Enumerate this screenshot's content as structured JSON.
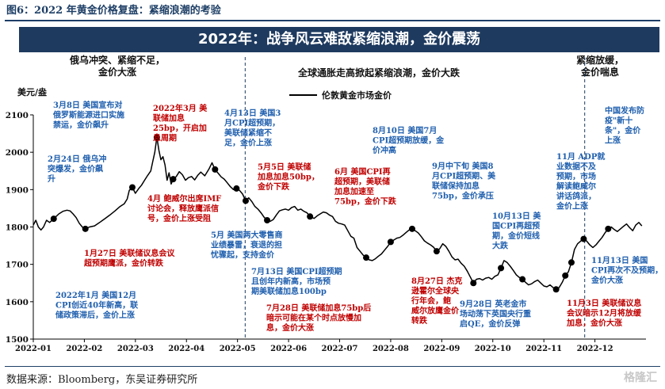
{
  "figure_title": "图6：2022 年黄金价格复盘：紧缩浪潮的考验",
  "banner_title": "2022年：战争风云难敌紧缩浪潮，金价震荡",
  "source": "数据来源：Bloomberg，东吴证券研究所",
  "watermark": "格隆汇",
  "colors": {
    "line": "#000000",
    "navy": "#1e3a5f",
    "blue_text": "#1f5fae",
    "red_text": "#c00000",
    "dashed": "#1e3a5f"
  },
  "phases": [
    {
      "lines": [
        "俄乌冲突、紧缩不足，",
        "金价大涨"
      ]
    },
    {
      "lines": [
        "全球通胀走高掀起紧缩浪潮，金价大跌"
      ]
    },
    {
      "lines": [
        "紧缩放缓，",
        "金价喘息"
      ]
    }
  ],
  "chart_data": {
    "type": "line",
    "ylabel": "美元/盎",
    "ylim": [
      1500,
      2100
    ],
    "yticks": [
      1500,
      1600,
      1700,
      1800,
      1900,
      2000,
      2100
    ],
    "x_tick_labels": [
      "2022-01",
      "2022-02",
      "2022-03",
      "2022-04",
      "2022-05",
      "2022-06",
      "2022-07",
      "2022-08",
      "2022-09",
      "2022-10",
      "2022-11",
      "2022-12"
    ],
    "xlim": [
      0,
      12
    ],
    "series": [
      {
        "name": "伦敦黄金市场金价",
        "color": "#000000",
        "points": [
          [
            0.0,
            1805
          ],
          [
            0.05,
            1818
          ],
          [
            0.1,
            1800
          ],
          [
            0.15,
            1792
          ],
          [
            0.2,
            1800
          ],
          [
            0.26,
            1818
          ],
          [
            0.32,
            1812
          ],
          [
            0.4,
            1822
          ],
          [
            0.5,
            1835
          ],
          [
            0.58,
            1842
          ],
          [
            0.66,
            1845
          ],
          [
            0.72,
            1843
          ],
          [
            0.78,
            1835
          ],
          [
            0.84,
            1825
          ],
          [
            0.9,
            1810
          ],
          [
            0.96,
            1800
          ],
          [
            1.02,
            1795
          ],
          [
            1.1,
            1800
          ],
          [
            1.2,
            1803
          ],
          [
            1.3,
            1812
          ],
          [
            1.4,
            1822
          ],
          [
            1.5,
            1832
          ],
          [
            1.6,
            1843
          ],
          [
            1.7,
            1855
          ],
          [
            1.78,
            1862
          ],
          [
            1.84,
            1875
          ],
          [
            1.88,
            1898
          ],
          [
            1.94,
            1906
          ],
          [
            2.0,
            1890
          ],
          [
            2.06,
            1902
          ],
          [
            2.12,
            1912
          ],
          [
            2.18,
            1925
          ],
          [
            2.24,
            1938
          ],
          [
            2.3,
            1950
          ],
          [
            2.34,
            1975
          ],
          [
            2.38,
            2000
          ],
          [
            2.42,
            2040
          ],
          [
            2.46,
            2005
          ],
          [
            2.5,
            1980
          ],
          [
            2.54,
            1988
          ],
          [
            2.58,
            1966
          ],
          [
            2.62,
            1925
          ],
          [
            2.66,
            1945
          ],
          [
            2.7,
            1915
          ],
          [
            2.74,
            1928
          ],
          [
            2.8,
            1935
          ],
          [
            2.86,
            1948
          ],
          [
            2.92,
            1940
          ],
          [
            2.98,
            1925
          ],
          [
            3.04,
            1932
          ],
          [
            3.1,
            1935
          ],
          [
            3.16,
            1926
          ],
          [
            3.22,
            1938
          ],
          [
            3.28,
            1947
          ],
          [
            3.36,
            1937
          ],
          [
            3.44,
            1955
          ],
          [
            3.5,
            1972
          ],
          [
            3.56,
            1954
          ],
          [
            3.62,
            1944
          ],
          [
            3.68,
            1934
          ],
          [
            3.74,
            1928
          ],
          [
            3.8,
            1918
          ],
          [
            3.86,
            1908
          ],
          [
            3.92,
            1900
          ],
          [
            3.98,
            1903
          ],
          [
            4.04,
            1898
          ],
          [
            4.1,
            1888
          ],
          [
            4.16,
            1870
          ],
          [
            4.22,
            1878
          ],
          [
            4.28,
            1868
          ],
          [
            4.34,
            1855
          ],
          [
            4.4,
            1848
          ],
          [
            4.46,
            1838
          ],
          [
            4.52,
            1826
          ],
          [
            4.58,
            1818
          ],
          [
            4.64,
            1815
          ],
          [
            4.7,
            1820
          ],
          [
            4.76,
            1832
          ],
          [
            4.82,
            1843
          ],
          [
            4.88,
            1846
          ],
          [
            4.94,
            1848
          ],
          [
            5.0,
            1845
          ],
          [
            5.06,
            1852
          ],
          [
            5.12,
            1855
          ],
          [
            5.18,
            1845
          ],
          [
            5.24,
            1848
          ],
          [
            5.3,
            1842
          ],
          [
            5.36,
            1838
          ],
          [
            5.42,
            1828
          ],
          [
            5.5,
            1823
          ],
          [
            5.56,
            1830
          ],
          [
            5.62,
            1835
          ],
          [
            5.68,
            1840
          ],
          [
            5.74,
            1838
          ],
          [
            5.8,
            1832
          ],
          [
            5.86,
            1828
          ],
          [
            5.92,
            1815
          ],
          [
            5.98,
            1810
          ],
          [
            6.04,
            1808
          ],
          [
            6.1,
            1805
          ],
          [
            6.16,
            1790
          ],
          [
            6.22,
            1775
          ],
          [
            6.28,
            1770
          ],
          [
            6.34,
            1745
          ],
          [
            6.4,
            1735
          ],
          [
            6.46,
            1725
          ],
          [
            6.52,
            1718
          ],
          [
            6.58,
            1712
          ],
          [
            6.64,
            1710
          ],
          [
            6.7,
            1715
          ],
          [
            6.76,
            1722
          ],
          [
            6.82,
            1728
          ],
          [
            6.88,
            1738
          ],
          [
            6.94,
            1748
          ],
          [
            7.0,
            1760
          ],
          [
            7.06,
            1765
          ],
          [
            7.12,
            1770
          ],
          [
            7.18,
            1772
          ],
          [
            7.24,
            1778
          ],
          [
            7.3,
            1785
          ],
          [
            7.36,
            1792
          ],
          [
            7.42,
            1795
          ],
          [
            7.48,
            1790
          ],
          [
            7.54,
            1784
          ],
          [
            7.6,
            1774
          ],
          [
            7.66,
            1763
          ],
          [
            7.72,
            1757
          ],
          [
            7.78,
            1752
          ],
          [
            7.84,
            1746
          ],
          [
            7.9,
            1735
          ],
          [
            7.96,
            1742
          ],
          [
            8.02,
            1755
          ],
          [
            8.08,
            1748
          ],
          [
            8.14,
            1735
          ],
          [
            8.2,
            1720
          ],
          [
            8.26,
            1712
          ],
          [
            8.32,
            1714
          ],
          [
            8.38,
            1703
          ],
          [
            8.44,
            1695
          ],
          [
            8.5,
            1682
          ],
          [
            8.56,
            1666
          ],
          [
            8.62,
            1650
          ],
          [
            8.68,
            1660
          ],
          [
            8.74,
            1662
          ],
          [
            8.8,
            1658
          ],
          [
            8.86,
            1663
          ],
          [
            8.92,
            1665
          ],
          [
            8.98,
            1660
          ],
          [
            9.04,
            1668
          ],
          [
            9.1,
            1672
          ],
          [
            9.16,
            1690
          ],
          [
            9.22,
            1710
          ],
          [
            9.28,
            1705
          ],
          [
            9.34,
            1695
          ],
          [
            9.4,
            1684
          ],
          [
            9.46,
            1672
          ],
          [
            9.52,
            1665
          ],
          [
            9.58,
            1660
          ],
          [
            9.64,
            1652
          ],
          [
            9.7,
            1645
          ],
          [
            9.76,
            1648
          ],
          [
            9.82,
            1654
          ],
          [
            9.88,
            1658
          ],
          [
            9.94,
            1650
          ],
          [
            10.0,
            1642
          ],
          [
            10.06,
            1640
          ],
          [
            10.12,
            1645
          ],
          [
            10.18,
            1638
          ],
          [
            10.24,
            1633
          ],
          [
            10.3,
            1638
          ],
          [
            10.36,
            1652
          ],
          [
            10.42,
            1670
          ],
          [
            10.48,
            1680
          ],
          [
            10.54,
            1705
          ],
          [
            10.6,
            1740
          ],
          [
            10.66,
            1755
          ],
          [
            10.72,
            1762
          ],
          [
            10.78,
            1768
          ],
          [
            10.84,
            1762
          ],
          [
            10.9,
            1752
          ],
          [
            10.96,
            1745
          ],
          [
            11.02,
            1752
          ],
          [
            11.08,
            1762
          ],
          [
            11.14,
            1772
          ],
          [
            11.2,
            1785
          ],
          [
            11.26,
            1795
          ],
          [
            11.32,
            1800
          ],
          [
            11.38,
            1793
          ],
          [
            11.44,
            1788
          ],
          [
            11.5,
            1795
          ],
          [
            11.56,
            1802
          ],
          [
            11.62,
            1808
          ],
          [
            11.68,
            1798
          ],
          [
            11.74,
            1790
          ],
          [
            11.8,
            1805
          ],
          [
            11.86,
            1812
          ],
          [
            11.92,
            1803
          ]
        ]
      }
    ],
    "phase_dividers_x": [
      4.15,
      10.8
    ],
    "markers": [
      {
        "x": 0.4,
        "y": 1822
      },
      {
        "x": 1.02,
        "y": 1795
      },
      {
        "x": 1.94,
        "y": 1906
      },
      {
        "x": 2.42,
        "y": 2040
      },
      {
        "x": 2.74,
        "y": 1928
      },
      {
        "x": 3.56,
        "y": 1954
      },
      {
        "x": 3.98,
        "y": 1903
      },
      {
        "x": 4.16,
        "y": 1870
      },
      {
        "x": 4.58,
        "y": 1818
      },
      {
        "x": 5.42,
        "y": 1828
      },
      {
        "x": 6.52,
        "y": 1718
      },
      {
        "x": 7.0,
        "y": 1760
      },
      {
        "x": 7.42,
        "y": 1795
      },
      {
        "x": 7.9,
        "y": 1735
      },
      {
        "x": 8.62,
        "y": 1650
      },
      {
        "x": 9.16,
        "y": 1690
      },
      {
        "x": 9.58,
        "y": 1660
      },
      {
        "x": 10.24,
        "y": 1633
      },
      {
        "x": 10.42,
        "y": 1670
      },
      {
        "x": 10.54,
        "y": 1705
      },
      {
        "x": 10.78,
        "y": 1768
      },
      {
        "x": 11.26,
        "y": 1795
      }
    ],
    "annotations": [
      {
        "color": "blue",
        "lines": [
          "3月8日 美国宣布对",
          "俄罗斯能源进口实施",
          "禁运，金价飙升"
        ]
      },
      {
        "color": "blue",
        "lines": [
          "2月24日 俄乌冲",
          "突爆发，金价飙",
          "升"
        ]
      },
      {
        "color": "red",
        "lines": [
          "1月27日 美联储议息会议",
          "超预期鹰派，金价转跌"
        ]
      },
      {
        "color": "blue",
        "lines": [
          "2022年1月 美国12月",
          "CPI创近40年新高，联",
          "储政策滞后，金价上涨"
        ]
      },
      {
        "color": "red",
        "lines": [
          "2022年3月 美",
          "联储加息",
          "25bp，开启加",
          "息周期"
        ]
      },
      {
        "color": "red",
        "lines": [
          "4月 鲍威尔出席IMF",
          "讨论会，释放鹰派信",
          "号，金价上涨受阻"
        ]
      },
      {
        "color": "blue",
        "lines": [
          "4月13日 美国3",
          "月CPI超预期，",
          "美联储紧缩不",
          "足，金价上涨"
        ]
      },
      {
        "color": "red",
        "lines": [
          "5月5日 美联储",
          "加息加息50bp，",
          "金价下跌"
        ]
      },
      {
        "color": "blue",
        "lines": [
          "5月 美国两大零售商",
          "业绩暴雷，衰退的担",
          "忧骤起，支持金价"
        ]
      },
      {
        "color": "red",
        "lines": [
          "6月 美国CPI再",
          "超预期，美联储",
          "加息加速至",
          "75bp，金价下跌"
        ]
      },
      {
        "color": "blue",
        "lines": [
          "7月13日 美国CPI超预期",
          "且创年内新高，市场预",
          "期美联储加息100bp"
        ]
      },
      {
        "color": "red",
        "lines": [
          "7月28日 美联储加息75bp后",
          "暗示可能在某个时点放慢加",
          "息，金价大涨"
        ]
      },
      {
        "color": "blue",
        "lines": [
          "8月10日 美国7月",
          "CPI超预期放缓，金",
          "价冲高"
        ]
      },
      {
        "color": "red",
        "lines": [
          "8月27日 杰克",
          "逊霍尔全球央",
          "行年会，鲍",
          "威尔放鹰金价",
          "转跌"
        ]
      },
      {
        "color": "blue",
        "lines": [
          "9月中下旬 美国8",
          "月CPI超预期、美",
          "联储保持加息",
          "75bp，金价承压"
        ]
      },
      {
        "color": "blue",
        "lines": [
          "9月28日 英老金市",
          "场动荡下英国央行重",
          "启QE，金价反弹"
        ]
      },
      {
        "color": "blue",
        "lines": [
          "10月13日 美",
          "国CPI再超预",
          "期，金价短线",
          "大跌"
        ]
      },
      {
        "color": "blue",
        "lines": [
          "11月 ADP就",
          "业数据不及",
          "预期，市场",
          "解读鲍威尔",
          "讲话鸽派，",
          "金价上涨"
        ]
      },
      {
        "color": "blue",
        "lines": [
          "中国发布防",
          "疫\"新十",
          "条\"，金价",
          "上涨"
        ]
      },
      {
        "color": "blue",
        "lines": [
          "11月13日 美国",
          "CPI再次不及预期，",
          "金价大涨"
        ]
      },
      {
        "color": "red",
        "lines": [
          "11月3日 美联储议息",
          "会议暗示12月将放缓",
          "加息，金价大涨"
        ]
      }
    ]
  }
}
